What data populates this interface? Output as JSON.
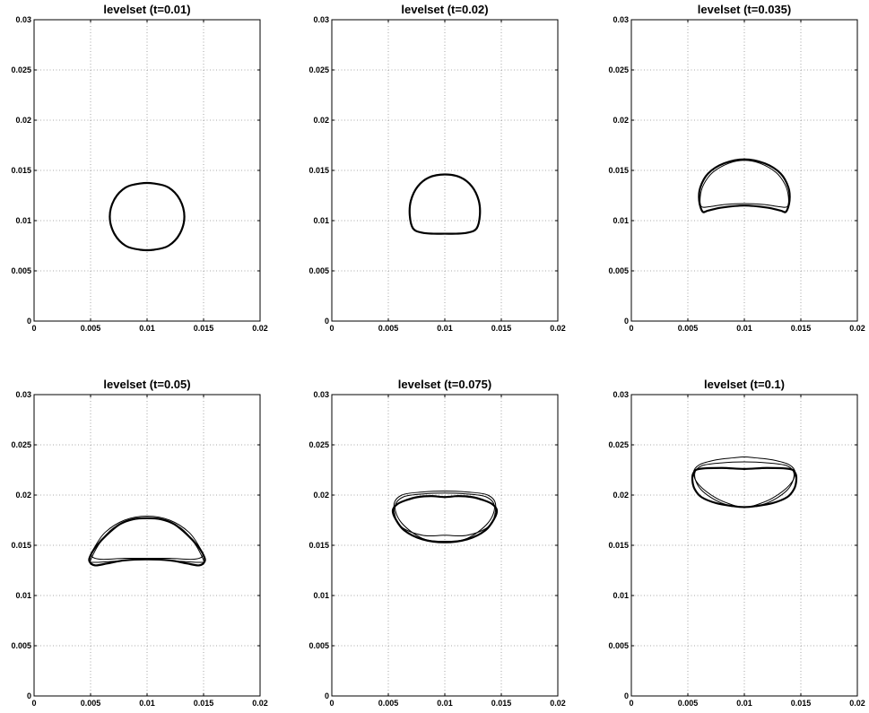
{
  "chart_data": [
    {
      "type": "line",
      "title": "levelset (t=0.01)",
      "xlim": [
        0,
        0.02
      ],
      "ylim": [
        0,
        0.03
      ],
      "xticks": [
        0,
        0.005,
        0.01,
        0.015,
        0.02
      ],
      "xtick_labels": [
        "0",
        "0.005",
        "0.01",
        "0.015",
        "0.02"
      ],
      "yticks": [
        0,
        0.005,
        0.01,
        0.015,
        0.02,
        0.025,
        0.03
      ],
      "ytick_labels": [
        "0",
        "0.005",
        "0.01",
        "0.015",
        "0.02",
        "0.025",
        "0.03"
      ],
      "grid": true,
      "series": [
        {
          "weight": "bold",
          "x": [
            0.0133,
            0.0129,
            0.0119,
            0.0106,
            0.0094,
            0.0081,
            0.0071,
            0.0067,
            0.0071,
            0.0081,
            0.0094,
            0.0106,
            0.0119,
            0.0129,
            0.0133
          ],
          "y": [
            0.0104,
            0.0121,
            0.0133,
            0.0137,
            0.0137,
            0.0133,
            0.0121,
            0.0104,
            0.0087,
            0.0075,
            0.0071,
            0.0071,
            0.0075,
            0.0087,
            0.0104
          ]
        }
      ]
    },
    {
      "type": "line",
      "title": "levelset (t=0.02)",
      "xlim": [
        0,
        0.02
      ],
      "ylim": [
        0,
        0.03
      ],
      "xticks": [
        0,
        0.005,
        0.01,
        0.015,
        0.02
      ],
      "xtick_labels": [
        "0",
        "0.005",
        "0.01",
        "0.015",
        "0.02"
      ],
      "yticks": [
        0,
        0.005,
        0.01,
        0.015,
        0.02,
        0.025,
        0.03
      ],
      "ytick_labels": [
        "0",
        "0.005",
        "0.01",
        "0.015",
        "0.02",
        "0.025",
        "0.03"
      ],
      "grid": true,
      "series": [
        {
          "weight": "bold",
          "x": [
            0.0072,
            0.0069,
            0.007,
            0.0076,
            0.0086,
            0.01,
            0.0114,
            0.0124,
            0.013,
            0.0131,
            0.0128,
            0.012,
            0.011,
            0.01,
            0.009,
            0.008,
            0.0072
          ],
          "y": [
            0.0092,
            0.0105,
            0.012,
            0.0134,
            0.0143,
            0.0146,
            0.0143,
            0.0134,
            0.012,
            0.0105,
            0.0092,
            0.0088,
            0.0087,
            0.0087,
            0.0087,
            0.0088,
            0.0092
          ]
        }
      ]
    },
    {
      "type": "line",
      "title": "levelset (t=0.035)",
      "xlim": [
        0,
        0.02
      ],
      "ylim": [
        0,
        0.03
      ],
      "xticks": [
        0,
        0.005,
        0.01,
        0.015,
        0.02
      ],
      "xtick_labels": [
        "0",
        "0.005",
        "0.01",
        "0.015",
        "0.02"
      ],
      "yticks": [
        0,
        0.005,
        0.01,
        0.015,
        0.02,
        0.025,
        0.03
      ],
      "ytick_labels": [
        "0",
        "0.005",
        "0.01",
        "0.015",
        "0.02",
        "0.025",
        "0.03"
      ],
      "grid": true,
      "series": [
        {
          "weight": "bold",
          "x": [
            0.0063,
            0.006,
            0.0061,
            0.0068,
            0.0082,
            0.01,
            0.0118,
            0.0132,
            0.0139,
            0.014,
            0.0137,
            0.0132,
            0.012,
            0.01,
            0.008,
            0.0068,
            0.0063
          ],
          "y": [
            0.0109,
            0.012,
            0.0133,
            0.0147,
            0.0157,
            0.0161,
            0.0157,
            0.0147,
            0.0133,
            0.012,
            0.0109,
            0.011,
            0.0113,
            0.0115,
            0.0113,
            0.011,
            0.0109
          ]
        },
        {
          "weight": "thin",
          "x": [
            0.0062,
            0.0061,
            0.0064,
            0.0072,
            0.0086,
            0.01,
            0.0114,
            0.0128,
            0.0136,
            0.0139,
            0.0138,
            0.013,
            0.0118,
            0.01,
            0.0082,
            0.007,
            0.0062
          ],
          "y": [
            0.0114,
            0.0124,
            0.0136,
            0.0148,
            0.0157,
            0.016,
            0.0157,
            0.0148,
            0.0136,
            0.0124,
            0.0114,
            0.0114,
            0.0116,
            0.0117,
            0.0116,
            0.0114,
            0.0114
          ]
        }
      ]
    },
    {
      "type": "line",
      "title": "levelset (t=0.05)",
      "xlim": [
        0,
        0.02
      ],
      "ylim": [
        0,
        0.03
      ],
      "xticks": [
        0,
        0.005,
        0.01,
        0.015,
        0.02
      ],
      "xtick_labels": [
        "0",
        "0.005",
        "0.01",
        "0.015",
        "0.02"
      ],
      "yticks": [
        0,
        0.005,
        0.01,
        0.015,
        0.02,
        0.025,
        0.03
      ],
      "ytick_labels": [
        "0",
        "0.005",
        "0.01",
        "0.015",
        "0.02",
        "0.025",
        "0.03"
      ],
      "grid": true,
      "series": [
        {
          "weight": "bold",
          "x": [
            0.005,
            0.0055,
            0.0064,
            0.0076,
            0.0088,
            0.01,
            0.0112,
            0.0124,
            0.0136,
            0.0145,
            0.015,
            0.0151,
            0.0146,
            0.0135,
            0.012,
            0.01,
            0.008,
            0.0065,
            0.0054,
            0.0049,
            0.005
          ],
          "y": [
            0.014,
            0.0149,
            0.016,
            0.0171,
            0.0176,
            0.0177,
            0.0176,
            0.0171,
            0.016,
            0.0149,
            0.014,
            0.0134,
            0.013,
            0.0132,
            0.0135,
            0.0136,
            0.0135,
            0.0132,
            0.013,
            0.0134,
            0.014
          ]
        },
        {
          "weight": "thin",
          "x": [
            0.005,
            0.0058,
            0.007,
            0.0085,
            0.01,
            0.0115,
            0.013,
            0.0142,
            0.015,
            0.0148,
            0.013,
            0.01,
            0.007,
            0.0052,
            0.005
          ],
          "y": [
            0.0135,
            0.0152,
            0.0167,
            0.0175,
            0.0177,
            0.0175,
            0.0167,
            0.0152,
            0.0135,
            0.0133,
            0.0134,
            0.0136,
            0.0134,
            0.0133,
            0.0135
          ]
        },
        {
          "weight": "thin",
          "x": [
            0.0051,
            0.0053,
            0.0063,
            0.008,
            0.01,
            0.012,
            0.0137,
            0.0147,
            0.0149,
            0.014,
            0.012,
            0.01,
            0.008,
            0.006,
            0.0051
          ],
          "y": [
            0.0139,
            0.0147,
            0.0163,
            0.0175,
            0.0179,
            0.0175,
            0.0163,
            0.0147,
            0.0139,
            0.0136,
            0.0137,
            0.0137,
            0.0137,
            0.0136,
            0.0139
          ]
        }
      ]
    },
    {
      "type": "line",
      "title": "levelset (t=0.075)",
      "xlim": [
        0,
        0.02
      ],
      "ylim": [
        0,
        0.03
      ],
      "xticks": [
        0,
        0.005,
        0.01,
        0.015,
        0.02
      ],
      "xtick_labels": [
        "0",
        "0.005",
        "0.01",
        "0.015",
        "0.02"
      ],
      "yticks": [
        0,
        0.005,
        0.01,
        0.015,
        0.02,
        0.025,
        0.03
      ],
      "ytick_labels": [
        "0",
        "0.005",
        "0.01",
        "0.015",
        "0.02",
        "0.025",
        "0.03"
      ],
      "grid": true,
      "series": [
        {
          "weight": "bold",
          "x": [
            0.0054,
            0.0058,
            0.0066,
            0.0076,
            0.0088,
            0.01,
            0.0112,
            0.0124,
            0.0134,
            0.0142,
            0.0146,
            0.0144,
            0.0136,
            0.012,
            0.01,
            0.008,
            0.0064,
            0.0056,
            0.0054
          ],
          "y": [
            0.0185,
            0.0191,
            0.0195,
            0.0198,
            0.0199,
            0.0198,
            0.0199,
            0.0198,
            0.0195,
            0.0191,
            0.0185,
            0.0177,
            0.0165,
            0.0156,
            0.0153,
            0.0156,
            0.0165,
            0.0177,
            0.0185
          ]
        },
        {
          "weight": "thin",
          "x": [
            0.0055,
            0.0062,
            0.008,
            0.01,
            0.012,
            0.0138,
            0.0145,
            0.014,
            0.012,
            0.01,
            0.008,
            0.006,
            0.0055
          ],
          "y": [
            0.019,
            0.02,
            0.0203,
            0.0204,
            0.0203,
            0.02,
            0.019,
            0.017,
            0.016,
            0.016,
            0.016,
            0.017,
            0.019
          ]
        },
        {
          "weight": "thin",
          "x": [
            0.0056,
            0.0063,
            0.008,
            0.01,
            0.012,
            0.0137,
            0.0144,
            0.0138,
            0.012,
            0.01,
            0.008,
            0.0062,
            0.0056
          ],
          "y": [
            0.0188,
            0.0198,
            0.0201,
            0.0202,
            0.0201,
            0.0198,
            0.0188,
            0.0172,
            0.0157,
            0.0154,
            0.0157,
            0.0172,
            0.0188
          ]
        }
      ]
    },
    {
      "type": "line",
      "title": "levelset (t=0.1)",
      "xlim": [
        0,
        0.02
      ],
      "ylim": [
        0,
        0.03
      ],
      "xticks": [
        0,
        0.005,
        0.01,
        0.015,
        0.02
      ],
      "xtick_labels": [
        "0",
        "0.005",
        "0.01",
        "0.015",
        "0.02"
      ],
      "yticks": [
        0,
        0.005,
        0.01,
        0.015,
        0.02,
        0.025,
        0.03
      ],
      "ytick_labels": [
        "0",
        "0.005",
        "0.01",
        "0.015",
        "0.02",
        "0.025",
        "0.03"
      ],
      "grid": true,
      "series": [
        {
          "weight": "bold",
          "x": [
            0.0054,
            0.0055,
            0.006,
            0.008,
            0.01,
            0.012,
            0.014,
            0.0145,
            0.0146,
            0.0144,
            0.0138,
            0.0125,
            0.011,
            0.01,
            0.009,
            0.0075,
            0.0062,
            0.0056,
            0.0054
          ],
          "y": [
            0.0215,
            0.0222,
            0.0226,
            0.0227,
            0.0226,
            0.0227,
            0.0226,
            0.0222,
            0.0215,
            0.0206,
            0.0198,
            0.0192,
            0.0189,
            0.0188,
            0.0189,
            0.0192,
            0.0198,
            0.0206,
            0.0215
          ]
        },
        {
          "weight": "thin",
          "x": [
            0.0055,
            0.006,
            0.0075,
            0.009,
            0.01,
            0.011,
            0.0125,
            0.014,
            0.0145,
            0.014,
            0.0125,
            0.011,
            0.01,
            0.009,
            0.0075,
            0.006,
            0.0055
          ],
          "y": [
            0.0222,
            0.023,
            0.0235,
            0.0237,
            0.0238,
            0.0237,
            0.0235,
            0.023,
            0.0222,
            0.021,
            0.0197,
            0.019,
            0.0188,
            0.019,
            0.0197,
            0.021,
            0.0222
          ]
        },
        {
          "weight": "thin",
          "x": [
            0.0056,
            0.0062,
            0.008,
            0.01,
            0.012,
            0.0138,
            0.0144,
            0.0138,
            0.012,
            0.01,
            0.008,
            0.0062,
            0.0056
          ],
          "y": [
            0.022,
            0.0229,
            0.0232,
            0.0233,
            0.0232,
            0.0229,
            0.022,
            0.0205,
            0.0192,
            0.0188,
            0.0192,
            0.0205,
            0.022
          ]
        }
      ]
    }
  ]
}
